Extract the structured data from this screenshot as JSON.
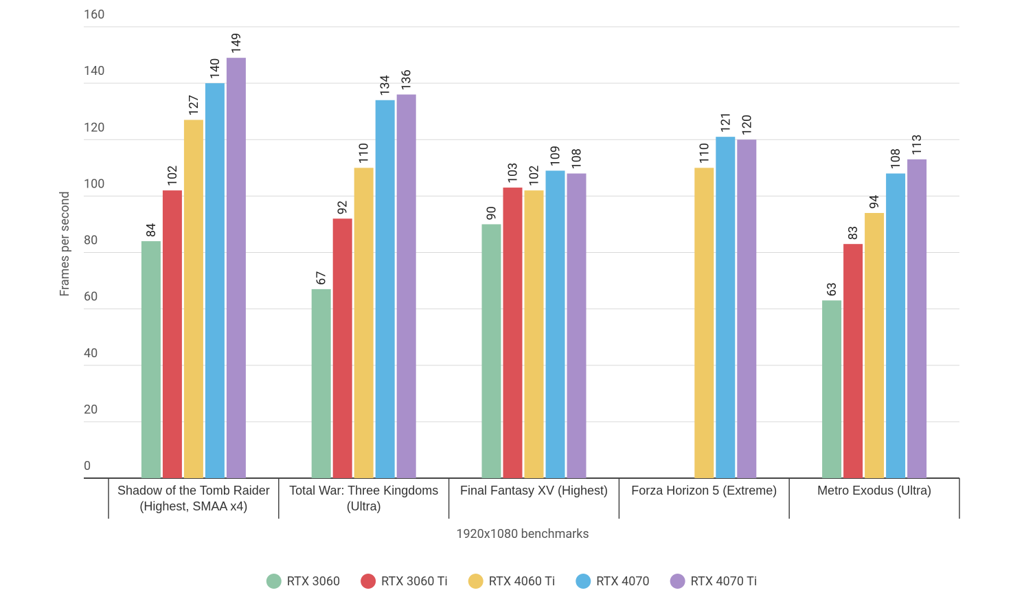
{
  "chart_data": {
    "type": "bar",
    "x_label": "1920x1080 benchmarks",
    "y_label": "Frames per second",
    "categories": [
      "Shadow of the Tomb Raider (Highest, SMAA x4)",
      "Total War: Three Kingdoms (Ultra)",
      "Final Fantasy XV (Highest)",
      "Forza Horizon 5 (Extreme)",
      "Metro Exodus (Ultra)"
    ],
    "series": [
      {
        "name": "RTX 3060",
        "color": "#8fc5a6",
        "values": [
          84,
          67,
          90,
          null,
          63
        ]
      },
      {
        "name": "RTX 3060 Ti",
        "color": "#dc5257",
        "values": [
          102,
          92,
          103,
          null,
          83
        ]
      },
      {
        "name": "RTX 4060 Ti",
        "color": "#efc965",
        "values": [
          127,
          110,
          102,
          110,
          94
        ]
      },
      {
        "name": "RTX 4070",
        "color": "#5eb5e3",
        "values": [
          140,
          134,
          109,
          121,
          108
        ]
      },
      {
        "name": "RTX 4070 Ti",
        "color": "#a98fca",
        "values": [
          149,
          136,
          108,
          120,
          113
        ]
      }
    ],
    "ylim": [
      0,
      160
    ],
    "yticks": [
      0,
      20,
      40,
      60,
      80,
      100,
      120,
      140,
      160
    ],
    "grid": true,
    "legend": "bottom"
  }
}
